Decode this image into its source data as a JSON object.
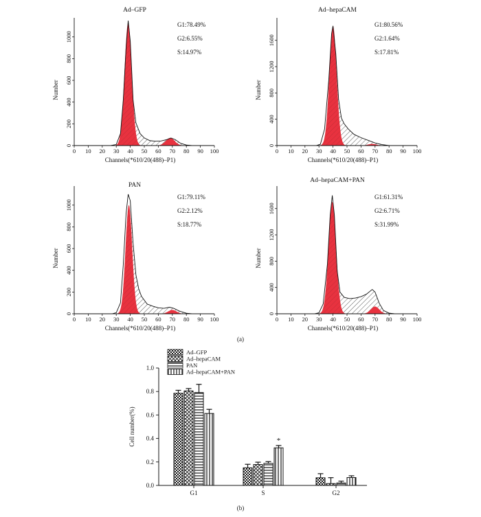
{
  "figure_labels": {
    "a": "(a)",
    "b": "(b)"
  },
  "colors": {
    "peak_fill": "#e8323f",
    "line": "#111111",
    "background": "#ffffff"
  },
  "chart_data": [
    {
      "type": "area",
      "title": "Ad–GFP",
      "xlabel": "Channels(*610/20(488)–P1)",
      "ylabel": "Number",
      "xlim": [
        0,
        100
      ],
      "ylim": [
        0,
        1150
      ],
      "xticks": [
        0,
        10,
        20,
        30,
        40,
        50,
        60,
        70,
        80,
        90,
        100
      ],
      "yticks": [
        0,
        200,
        400,
        600,
        800,
        1000
      ],
      "annotations": [
        "G1:78.49%",
        "G2:6.55%",
        "S:14.97%"
      ],
      "peaks": {
        "g1_center": 38.5,
        "g1_sd": 2.6,
        "g1_height": 1130,
        "g2_center": 68.5,
        "g2_sd": 3.2,
        "g2_height": 70
      },
      "histogram": {
        "x": [
          26,
          30,
          33,
          35,
          37,
          38.5,
          40,
          42,
          44,
          47,
          50,
          54,
          58,
          62,
          66,
          69,
          72,
          76,
          80,
          84
        ],
        "y": [
          0,
          10,
          110,
          420,
          900,
          1150,
          960,
          420,
          210,
          110,
          70,
          45,
          40,
          42,
          55,
          70,
          55,
          20,
          5,
          0
        ]
      }
    },
    {
      "type": "area",
      "title": "Ad–hepaCAM",
      "xlabel": "Channels(*610/20(488)–P1)",
      "ylabel": "Number",
      "xlim": [
        0,
        100
      ],
      "ylim": [
        0,
        1900
      ],
      "xticks": [
        0,
        10,
        20,
        30,
        40,
        50,
        60,
        70,
        80,
        90,
        100
      ],
      "yticks": [
        0,
        400,
        800,
        1200,
        1600
      ],
      "annotations": [
        "G1:80.56%",
        "G2:1.64%",
        "S:17.81%"
      ],
      "peaks": {
        "g1_center": 40,
        "g1_sd": 2.6,
        "g1_height": 1820,
        "g2_center": 68,
        "g2_sd": 3.0,
        "g2_height": 25
      },
      "histogram": {
        "x": [
          28,
          31,
          34,
          37,
          39,
          40,
          42,
          44,
          46,
          48,
          51,
          55,
          60,
          65,
          70,
          75,
          80
        ],
        "y": [
          0,
          20,
          250,
          1000,
          1700,
          1820,
          1400,
          700,
          420,
          330,
          250,
          170,
          120,
          80,
          40,
          15,
          0
        ]
      }
    },
    {
      "type": "area",
      "title": "PAN",
      "xlabel": "Channels(*610/20(488)–P1)",
      "ylabel": "Number",
      "xlim": [
        0,
        100
      ],
      "ylim": [
        0,
        1150
      ],
      "xticks": [
        0,
        10,
        20,
        30,
        40,
        50,
        60,
        70,
        80,
        90,
        100
      ],
      "yticks": [
        0,
        200,
        400,
        600,
        800,
        1000
      ],
      "annotations": [
        "G1:79.11%",
        "G2:2.12%",
        "S:18.77%"
      ],
      "peaks": {
        "g1_center": 39,
        "g1_sd": 2.4,
        "g1_height": 1000,
        "g2_center": 70,
        "g2_sd": 3.0,
        "g2_height": 35
      },
      "histogram": {
        "x": [
          27,
          30,
          33,
          35,
          37,
          38.5,
          40,
          42,
          44,
          46,
          48,
          52,
          56,
          60,
          64,
          68,
          71,
          75,
          80,
          84
        ],
        "y": [
          0,
          10,
          100,
          450,
          920,
          1100,
          1040,
          650,
          360,
          230,
          160,
          90,
          70,
          55,
          50,
          60,
          50,
          25,
          5,
          0
        ]
      }
    },
    {
      "type": "area",
      "title": "Ad–hepaCAM+PAN",
      "xlabel": "Channels(*610/20(488)–P1)",
      "ylabel": "Number",
      "xlim": [
        0,
        100
      ],
      "ylim": [
        0,
        1900
      ],
      "xticks": [
        0,
        10,
        20,
        30,
        40,
        50,
        60,
        70,
        80,
        90,
        100
      ],
      "yticks": [
        0,
        400,
        800,
        1200,
        1600
      ],
      "annotations": [
        "G1:61.31%",
        "G2:6.71%",
        "S:31.99%"
      ],
      "peaks": {
        "g1_center": 39.5,
        "g1_sd": 2.7,
        "g1_height": 1700,
        "g2_center": 70,
        "g2_sd": 3.0,
        "g2_height": 110
      },
      "histogram": {
        "x": [
          27,
          30,
          33,
          36,
          38,
          39.5,
          41,
          43,
          45,
          48,
          52,
          56,
          60,
          64,
          68,
          70,
          73,
          76,
          80,
          84
        ],
        "y": [
          0,
          15,
          150,
          750,
          1500,
          1800,
          1500,
          650,
          330,
          250,
          230,
          240,
          260,
          300,
          370,
          330,
          160,
          50,
          10,
          0
        ]
      }
    },
    {
      "type": "bar",
      "xlabel": "",
      "ylabel": "Cell number(%)",
      "categories": [
        "G1",
        "S",
        "G2"
      ],
      "ylim": [
        0,
        1.0
      ],
      "yticks": [
        0,
        0.2,
        0.4,
        0.6,
        0.8,
        1.0
      ],
      "series": [
        {
          "name": "Ad–GFP",
          "values": [
            0.785,
            0.15,
            0.065
          ],
          "errors": [
            0.025,
            0.03,
            0.035
          ]
        },
        {
          "name": "Ad–hepaCAM",
          "values": [
            0.805,
            0.178,
            0.016
          ],
          "errors": [
            0.02,
            0.02,
            0.05
          ]
        },
        {
          "name": "PAN",
          "values": [
            0.791,
            0.188,
            0.021
          ],
          "errors": [
            0.07,
            0.015,
            0.015
          ]
        },
        {
          "name": "Ad–hepaCAM+PAN",
          "values": [
            0.613,
            0.32,
            0.067
          ],
          "errors": [
            0.035,
            0.02,
            0.015
          ]
        }
      ],
      "significance": [
        {
          "category": "S",
          "series": "Ad–hepaCAM+PAN",
          "mark": "*"
        }
      ]
    }
  ]
}
